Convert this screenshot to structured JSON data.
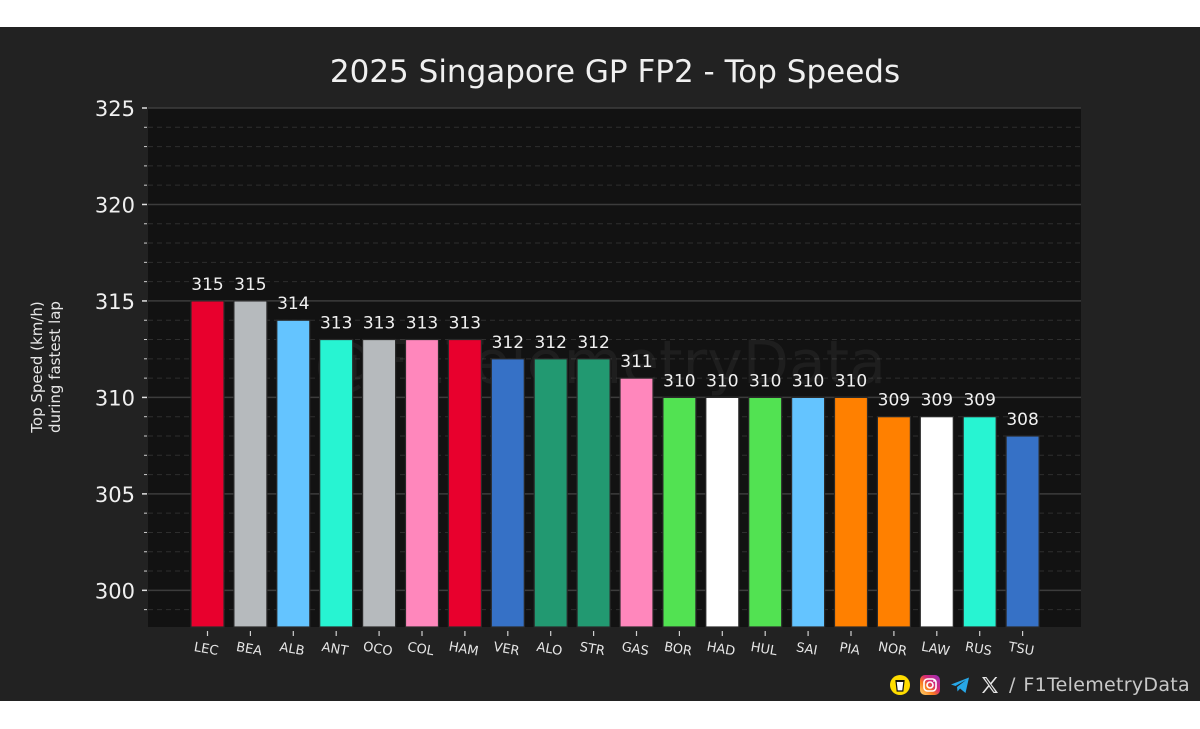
{
  "chart_data": {
    "type": "bar",
    "title": "2025 Singapore GP FP2 - Top Speeds",
    "xlabel": "",
    "ylabel": [
      "Top Speed (km/h)",
      "during fastest lap"
    ],
    "ylim": [
      298.1,
      325
    ],
    "yticks": [
      300,
      305,
      310,
      315,
      320,
      325
    ],
    "ytick_labels": [
      "300",
      "305",
      "310",
      "315",
      "320",
      "325"
    ],
    "minor_ytick_step": 1,
    "grid": true,
    "watermark": "@F1TelemetryData",
    "categories": [
      "LEC",
      "BEA",
      "ALB",
      "ANT",
      "OCO",
      "COL",
      "HAM",
      "VER",
      "ALO",
      "STR",
      "GAS",
      "BOR",
      "HAD",
      "HUL",
      "SAI",
      "PIA",
      "NOR",
      "LAW",
      "RUS",
      "TSU"
    ],
    "values": [
      315,
      315,
      314,
      313,
      313,
      313,
      313,
      312,
      312,
      312,
      311,
      310,
      310,
      310,
      310,
      310,
      309,
      309,
      309,
      308
    ],
    "data_labels": [
      "315",
      "315",
      "314",
      "313",
      "313",
      "313",
      "313",
      "312",
      "312",
      "312",
      "311",
      "310",
      "310",
      "310",
      "310",
      "310",
      "309",
      "309",
      "309",
      "308"
    ],
    "colors": [
      "#E8002D",
      "#B6BABD",
      "#64C4FF",
      "#27F4D2",
      "#B6BABD",
      "#FF87BC",
      "#E8002D",
      "#3671C6",
      "#229971",
      "#229971",
      "#FF87BC",
      "#52E252",
      "#FFFFFF",
      "#52E252",
      "#64C4FF",
      "#FF8000",
      "#FF8000",
      "#FFFFFF",
      "#27F4D2",
      "#3671C6"
    ]
  },
  "footer": {
    "icons": [
      "buy-me-a-coffee-icon",
      "instagram-icon",
      "telegram-icon",
      "x-icon"
    ],
    "separator": "/",
    "handle": "F1TelemetryData"
  },
  "theme": {
    "figure_bg": "#222222",
    "plot_bg": "#121212",
    "text": "#f0f0f0",
    "grid_major": "#3c3c3c",
    "grid_minor": "#2e2e2e"
  }
}
